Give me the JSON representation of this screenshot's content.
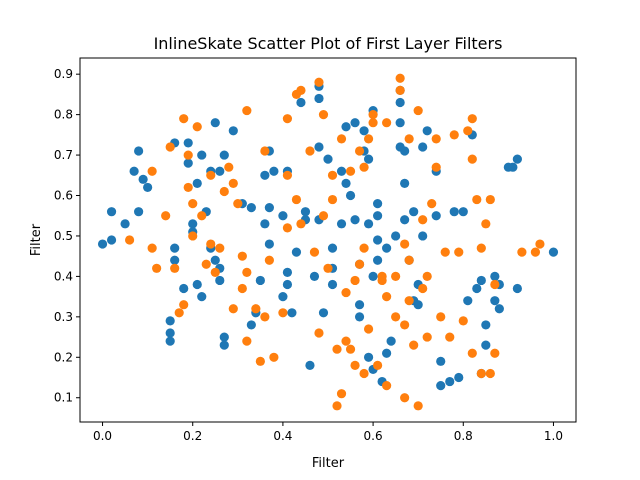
{
  "chart_data": {
    "type": "scatter",
    "title": "InlineSkate Scatter Plot of First Layer Filters",
    "xlabel": "Filter",
    "ylabel": "Filter",
    "xlim": [
      -0.05,
      1.05
    ],
    "ylim": [
      0.04,
      0.94
    ],
    "xticks": [
      0.0,
      0.2,
      0.4,
      0.6,
      0.8,
      1.0
    ],
    "xtick_labels": [
      "0.0",
      "0.2",
      "0.4",
      "0.6",
      "0.8",
      "1.0"
    ],
    "yticks": [
      0.1,
      0.2,
      0.3,
      0.4,
      0.5,
      0.6,
      0.7,
      0.8,
      0.9
    ],
    "ytick_labels": [
      "0.1",
      "0.2",
      "0.3",
      "0.4",
      "0.5",
      "0.6",
      "0.7",
      "0.8",
      "0.9"
    ],
    "grid": false,
    "legend": "none",
    "series": [
      {
        "color": "#1f77b4",
        "points": [
          [
            0.0,
            0.48
          ],
          [
            0.02,
            0.49
          ],
          [
            0.02,
            0.56
          ],
          [
            0.05,
            0.53
          ],
          [
            0.07,
            0.66
          ],
          [
            0.08,
            0.71
          ],
          [
            0.08,
            0.56
          ],
          [
            0.09,
            0.64
          ],
          [
            0.1,
            0.62
          ],
          [
            0.15,
            0.24
          ],
          [
            0.15,
            0.26
          ],
          [
            0.15,
            0.29
          ],
          [
            0.16,
            0.44
          ],
          [
            0.16,
            0.47
          ],
          [
            0.16,
            0.73
          ],
          [
            0.18,
            0.37
          ],
          [
            0.19,
            0.73
          ],
          [
            0.19,
            0.68
          ],
          [
            0.2,
            0.53
          ],
          [
            0.2,
            0.51
          ],
          [
            0.21,
            0.38
          ],
          [
            0.21,
            0.63
          ],
          [
            0.22,
            0.35
          ],
          [
            0.22,
            0.7
          ],
          [
            0.23,
            0.56
          ],
          [
            0.24,
            0.66
          ],
          [
            0.24,
            0.47
          ],
          [
            0.25,
            0.44
          ],
          [
            0.25,
            0.78
          ],
          [
            0.26,
            0.66
          ],
          [
            0.26,
            0.42
          ],
          [
            0.26,
            0.39
          ],
          [
            0.27,
            0.25
          ],
          [
            0.27,
            0.23
          ],
          [
            0.27,
            0.7
          ],
          [
            0.29,
            0.76
          ],
          [
            0.31,
            0.58
          ],
          [
            0.33,
            0.28
          ],
          [
            0.33,
            0.57
          ],
          [
            0.34,
            0.31
          ],
          [
            0.35,
            0.39
          ],
          [
            0.36,
            0.65
          ],
          [
            0.36,
            0.53
          ],
          [
            0.37,
            0.57
          ],
          [
            0.37,
            0.48
          ],
          [
            0.37,
            0.71
          ],
          [
            0.38,
            0.66
          ],
          [
            0.4,
            0.35
          ],
          [
            0.4,
            0.55
          ],
          [
            0.41,
            0.38
          ],
          [
            0.41,
            0.41
          ],
          [
            0.41,
            0.66
          ],
          [
            0.42,
            0.31
          ],
          [
            0.43,
            0.46
          ],
          [
            0.44,
            0.83
          ],
          [
            0.45,
            0.54
          ],
          [
            0.45,
            0.56
          ],
          [
            0.46,
            0.18
          ],
          [
            0.47,
            0.4
          ],
          [
            0.48,
            0.72
          ],
          [
            0.48,
            0.84
          ],
          [
            0.48,
            0.87
          ],
          [
            0.48,
            0.54
          ],
          [
            0.49,
            0.31
          ],
          [
            0.5,
            0.69
          ],
          [
            0.51,
            0.38
          ],
          [
            0.51,
            0.47
          ],
          [
            0.51,
            0.42
          ],
          [
            0.53,
            0.53
          ],
          [
            0.53,
            0.66
          ],
          [
            0.54,
            0.63
          ],
          [
            0.54,
            0.77
          ],
          [
            0.55,
            0.6
          ],
          [
            0.56,
            0.54
          ],
          [
            0.56,
            0.78
          ],
          [
            0.57,
            0.43
          ],
          [
            0.57,
            0.33
          ],
          [
            0.57,
            0.3
          ],
          [
            0.58,
            0.71
          ],
          [
            0.58,
            0.76
          ],
          [
            0.59,
            0.53
          ],
          [
            0.59,
            0.69
          ],
          [
            0.59,
            0.2
          ],
          [
            0.6,
            0.4
          ],
          [
            0.6,
            0.81
          ],
          [
            0.6,
            0.17
          ],
          [
            0.61,
            0.49
          ],
          [
            0.61,
            0.55
          ],
          [
            0.61,
            0.58
          ],
          [
            0.61,
            0.44
          ],
          [
            0.62,
            0.14
          ],
          [
            0.63,
            0.47
          ],
          [
            0.63,
            0.21
          ],
          [
            0.64,
            0.24
          ],
          [
            0.65,
            0.5
          ],
          [
            0.66,
            0.72
          ],
          [
            0.66,
            0.78
          ],
          [
            0.66,
            0.86
          ],
          [
            0.66,
            0.83
          ],
          [
            0.67,
            0.54
          ],
          [
            0.67,
            0.71
          ],
          [
            0.67,
            0.63
          ],
          [
            0.68,
            0.44
          ],
          [
            0.69,
            0.56
          ],
          [
            0.69,
            0.34
          ],
          [
            0.7,
            0.38
          ],
          [
            0.7,
            0.33
          ],
          [
            0.71,
            0.72
          ],
          [
            0.71,
            0.5
          ],
          [
            0.72,
            0.76
          ],
          [
            0.74,
            0.55
          ],
          [
            0.74,
            0.66
          ],
          [
            0.75,
            0.13
          ],
          [
            0.75,
            0.19
          ],
          [
            0.77,
            0.14
          ],
          [
            0.78,
            0.56
          ],
          [
            0.79,
            0.15
          ],
          [
            0.8,
            0.56
          ],
          [
            0.81,
            0.34
          ],
          [
            0.82,
            0.75
          ],
          [
            0.83,
            0.37
          ],
          [
            0.84,
            0.16
          ],
          [
            0.84,
            0.39
          ],
          [
            0.85,
            0.28
          ],
          [
            0.85,
            0.23
          ],
          [
            0.87,
            0.34
          ],
          [
            0.87,
            0.4
          ],
          [
            0.88,
            0.38
          ],
          [
            0.88,
            0.32
          ],
          [
            0.9,
            0.67
          ],
          [
            0.91,
            0.67
          ],
          [
            0.92,
            0.69
          ],
          [
            0.92,
            0.37
          ],
          [
            1.0,
            0.46
          ]
        ]
      },
      {
        "color": "#ff7f0e",
        "points": [
          [
            0.06,
            0.49
          ],
          [
            0.11,
            0.47
          ],
          [
            0.11,
            0.66
          ],
          [
            0.12,
            0.42
          ],
          [
            0.14,
            0.55
          ],
          [
            0.15,
            0.72
          ],
          [
            0.16,
            0.42
          ],
          [
            0.17,
            0.31
          ],
          [
            0.18,
            0.79
          ],
          [
            0.18,
            0.33
          ],
          [
            0.19,
            0.62
          ],
          [
            0.19,
            0.7
          ],
          [
            0.2,
            0.5
          ],
          [
            0.2,
            0.58
          ],
          [
            0.21,
            0.77
          ],
          [
            0.22,
            0.55
          ],
          [
            0.23,
            0.43
          ],
          [
            0.24,
            0.65
          ],
          [
            0.24,
            0.48
          ],
          [
            0.25,
            0.41
          ],
          [
            0.26,
            0.47
          ],
          [
            0.27,
            0.61
          ],
          [
            0.28,
            0.67
          ],
          [
            0.29,
            0.32
          ],
          [
            0.29,
            0.63
          ],
          [
            0.3,
            0.58
          ],
          [
            0.31,
            0.45
          ],
          [
            0.31,
            0.37
          ],
          [
            0.32,
            0.24
          ],
          [
            0.32,
            0.41
          ],
          [
            0.32,
            0.81
          ],
          [
            0.34,
            0.32
          ],
          [
            0.35,
            0.19
          ],
          [
            0.36,
            0.3
          ],
          [
            0.36,
            0.71
          ],
          [
            0.37,
            0.44
          ],
          [
            0.38,
            0.2
          ],
          [
            0.4,
            0.31
          ],
          [
            0.41,
            0.52
          ],
          [
            0.41,
            0.65
          ],
          [
            0.41,
            0.79
          ],
          [
            0.43,
            0.85
          ],
          [
            0.43,
            0.59
          ],
          [
            0.44,
            0.53
          ],
          [
            0.44,
            0.86
          ],
          [
            0.46,
            0.71
          ],
          [
            0.47,
            0.46
          ],
          [
            0.48,
            0.88
          ],
          [
            0.48,
            0.26
          ],
          [
            0.49,
            0.55
          ],
          [
            0.49,
            0.8
          ],
          [
            0.5,
            0.42
          ],
          [
            0.51,
            0.59
          ],
          [
            0.51,
            0.65
          ],
          [
            0.52,
            0.22
          ],
          [
            0.52,
            0.08
          ],
          [
            0.53,
            0.11
          ],
          [
            0.53,
            0.74
          ],
          [
            0.54,
            0.24
          ],
          [
            0.54,
            0.36
          ],
          [
            0.55,
            0.66
          ],
          [
            0.55,
            0.22
          ],
          [
            0.56,
            0.18
          ],
          [
            0.56,
            0.39
          ],
          [
            0.57,
            0.43
          ],
          [
            0.57,
            0.71
          ],
          [
            0.58,
            0.16
          ],
          [
            0.58,
            0.67
          ],
          [
            0.58,
            0.47
          ],
          [
            0.59,
            0.74
          ],
          [
            0.59,
            0.27
          ],
          [
            0.6,
            0.8
          ],
          [
            0.6,
            0.78
          ],
          [
            0.61,
            0.18
          ],
          [
            0.62,
            0.39
          ],
          [
            0.62,
            0.4
          ],
          [
            0.63,
            0.78
          ],
          [
            0.63,
            0.13
          ],
          [
            0.63,
            0.35
          ],
          [
            0.65,
            0.3
          ],
          [
            0.65,
            0.4
          ],
          [
            0.66,
            0.89
          ],
          [
            0.66,
            0.86
          ],
          [
            0.67,
            0.1
          ],
          [
            0.67,
            0.28
          ],
          [
            0.67,
            0.48
          ],
          [
            0.68,
            0.44
          ],
          [
            0.68,
            0.34
          ],
          [
            0.68,
            0.74
          ],
          [
            0.69,
            0.23
          ],
          [
            0.7,
            0.08
          ],
          [
            0.7,
            0.81
          ],
          [
            0.71,
            0.54
          ],
          [
            0.71,
            0.37
          ],
          [
            0.72,
            0.4
          ],
          [
            0.72,
            0.25
          ],
          [
            0.73,
            0.58
          ],
          [
            0.74,
            0.67
          ],
          [
            0.74,
            0.74
          ],
          [
            0.75,
            0.3
          ],
          [
            0.76,
            0.46
          ],
          [
            0.77,
            0.25
          ],
          [
            0.78,
            0.75
          ],
          [
            0.79,
            0.46
          ],
          [
            0.8,
            0.29
          ],
          [
            0.81,
            0.76
          ],
          [
            0.82,
            0.79
          ],
          [
            0.82,
            0.21
          ],
          [
            0.82,
            0.69
          ],
          [
            0.83,
            0.59
          ],
          [
            0.84,
            0.16
          ],
          [
            0.84,
            0.47
          ],
          [
            0.85,
            0.53
          ],
          [
            0.86,
            0.16
          ],
          [
            0.86,
            0.59
          ],
          [
            0.87,
            0.38
          ],
          [
            0.87,
            0.21
          ],
          [
            0.93,
            0.46
          ],
          [
            0.96,
            0.46
          ],
          [
            0.97,
            0.48
          ]
        ]
      }
    ]
  }
}
